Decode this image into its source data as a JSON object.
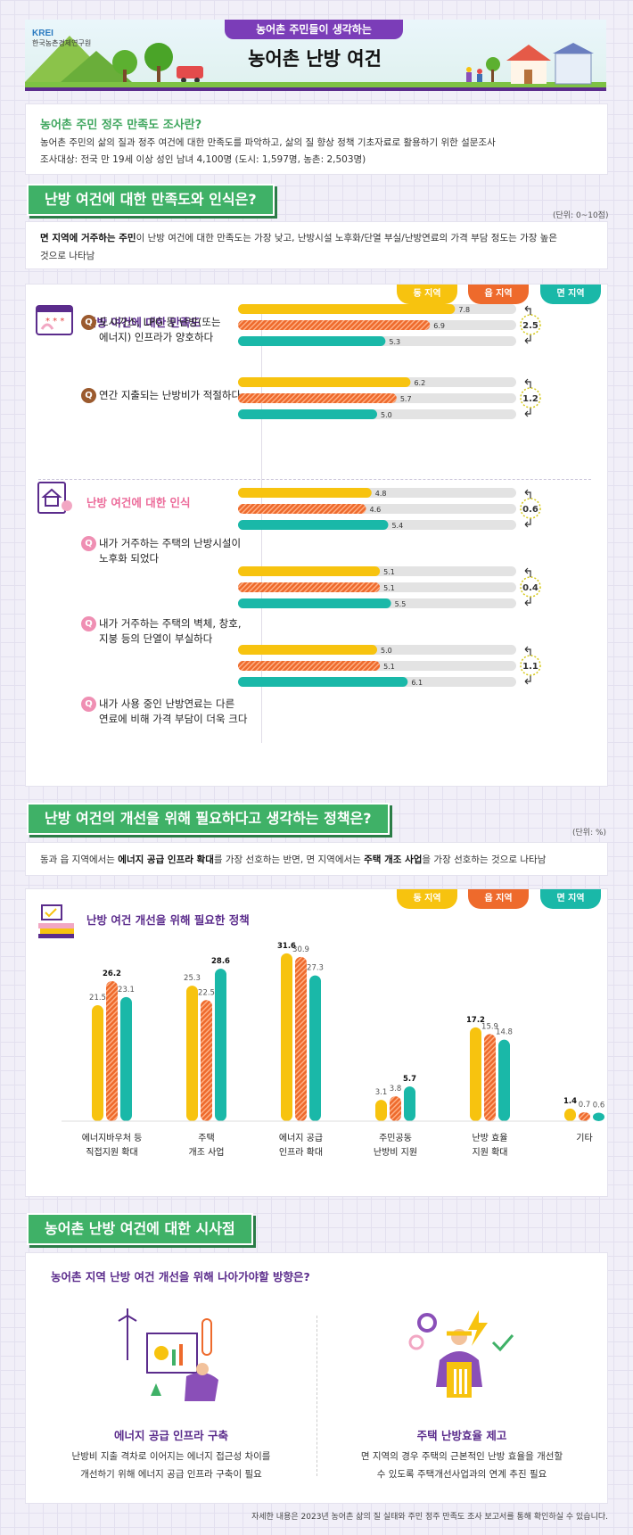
{
  "header": {
    "org_name_en": "KREI",
    "org_name": "한국농촌경제연구원",
    "subtitle": "농어촌 주민들이 생각하는",
    "title": "농어촌 난방 여건"
  },
  "survey": {
    "heading": "농어촌 주민 정주 만족도 조사란?",
    "line1": "농어촌 주민의 삶의 질과 정주 여건에 대한 만족도를 파악하고, 삶의 질 향상 정책 기초자료로 활용하기 위한 설문조사",
    "line2": "조사대상: 전국 만 19세 이상 성인 남녀 4,100명 (도시: 1,597명, 농촌: 2,503명)"
  },
  "section1": {
    "heading": "난방 여건에 대한 만족도와 인식은?",
    "unit": "(단위: 0~10점)",
    "summary_bold": "면 지역에 거주하는 주민",
    "summary_rest": "이 난방 여건에 대한 만족도는 가장 낮고, 난방시설 노후화/단열 부실/난방연료의 가격 부담 정도는 가장 높은",
    "summary_line2": "것으로 나타남"
  },
  "legend": [
    {
      "label": "동 지역",
      "color": "#f7c30f"
    },
    {
      "label": "읍 지역",
      "color": "#ee6a2c"
    },
    {
      "label": "면 지역",
      "color": "#1ab8a8"
    }
  ],
  "chart_data": [
    {
      "type": "bar",
      "orientation": "horizontal",
      "title": "난방 여건에 대한 만족도",
      "scale": [
        0,
        10
      ],
      "series_names": [
        "동 지역",
        "읍 지역",
        "면 지역"
      ],
      "items": [
        {
          "q1": "도시가스, LPG 등 난방(또는",
          "q2": "에너지) 인프라가 양호하다",
          "values": [
            7.8,
            6.9,
            5.3
          ],
          "labels": [
            "7.8",
            "6.9",
            "5.3"
          ],
          "gap": "2.5"
        },
        {
          "q1": "연간 지출되는 난방비가 적절하다",
          "q2": "",
          "values": [
            6.2,
            5.7,
            5.0
          ],
          "labels": [
            "6.2",
            "5.7",
            "5.0"
          ],
          "gap": "1.2"
        }
      ]
    },
    {
      "type": "bar",
      "orientation": "horizontal",
      "title": "난방 여건에 대한 인식",
      "scale": [
        0,
        10
      ],
      "series_names": [
        "동 지역",
        "읍 지역",
        "면 지역"
      ],
      "items": [
        {
          "q1": "내가 거주하는 주택의 난방시설이",
          "q2": "노후화 되었다",
          "values": [
            4.8,
            4.6,
            5.4
          ],
          "labels": [
            "4.8",
            "4.6",
            "5.4"
          ],
          "gap": "0.6"
        },
        {
          "q1": "내가 거주하는 주택의 벽체, 창호,",
          "q2": "지붕 등의 단열이 부실하다",
          "values": [
            5.1,
            5.1,
            5.5
          ],
          "labels": [
            "5.1",
            "5.1",
            "5.5"
          ],
          "gap": "0.4"
        },
        {
          "q1": "내가 사용 중인 난방연료는 다른",
          "q2": "연료에 비해 가격 부담이 더욱 크다",
          "values": [
            5.0,
            5.1,
            6.1
          ],
          "labels": [
            "5.0",
            "5.1",
            "6.1"
          ],
          "gap": "1.1"
        }
      ]
    },
    {
      "type": "bar",
      "orientation": "vertical",
      "title": "난방 여건 개선을 위해 필요한 정책",
      "ylim": [
        0,
        35
      ],
      "series_names": [
        "동 지역",
        "읍 지역",
        "면 지역"
      ],
      "categories": [
        {
          "l1": "에너지바우처 등",
          "l2": "직접지원 확대"
        },
        {
          "l1": "주택",
          "l2": "개조 사업"
        },
        {
          "l1": "에너지 공급",
          "l2": "인프라 확대"
        },
        {
          "l1": "주민공동",
          "l2": "난방비 지원"
        },
        {
          "l1": "난방 효율",
          "l2": "지원 확대"
        },
        {
          "l1": "기타",
          "l2": ""
        }
      ],
      "series": [
        {
          "name": "동 지역",
          "values": [
            21.5,
            25.3,
            31.6,
            3.1,
            17.2,
            1.4
          ],
          "labels": [
            "21.5",
            "25.3",
            "31.6",
            "3.1",
            "17.2",
            "1.4"
          ]
        },
        {
          "name": "읍 지역",
          "values": [
            26.2,
            22.5,
            30.9,
            3.8,
            15.9,
            0.7
          ],
          "labels": [
            "26.2",
            "22.5",
            "30.9",
            "3.8",
            "15.9",
            "0.7"
          ]
        },
        {
          "name": "면 지역",
          "values": [
            23.1,
            28.6,
            27.3,
            5.7,
            14.8,
            0.6
          ],
          "labels": [
            "23.1",
            "28.6",
            "27.3",
            "5.7",
            "14.8",
            "0.6"
          ]
        }
      ],
      "bold_labels": [
        [
          0,
          1
        ],
        [
          1,
          2
        ],
        [
          2,
          0
        ],
        [
          3,
          2
        ],
        [
          4,
          0
        ],
        [
          5,
          0
        ]
      ]
    }
  ],
  "section2": {
    "heading": "난방 여건의 개선을 위해 필요하다고 생각하는 정책은?",
    "unit": "(단위: %)",
    "summary_a": "동과 읍 지역에서는 ",
    "summary_b": "에너지 공급 인프라 확대",
    "summary_c": "를 가장 선호하는 반면, 면 지역에서는 ",
    "summary_d": "주택 개조 사업",
    "summary_e": "을 가장 선호하는 것으로 나타남"
  },
  "section3": {
    "heading": "농어촌 난방 여건에 대한 시사점",
    "question": "농어촌 지역 난방 여건 개선을 위해 나아가야할 방향은?",
    "left_title": "에너지 공급 인프라 구축",
    "left_line1": "난방비 지출 격차로 이어지는 에너지 접근성 차이를",
    "left_line2": "개선하기 위해 에너지 공급 인프라 구축이 필요",
    "right_title": "주택 난방효율 제고",
    "right_line1": "면 지역의 경우 주택의 근본적인 난방 효율을 개선할",
    "right_line2": "수 있도록 주택개선사업과의 연계 추진 필요"
  },
  "footer": "자세한 내용은 2023년 농어촌 삶의 질 실태와 주민 정주 만족도 조사 보고서를 통해 확인하실 수 있습니다."
}
